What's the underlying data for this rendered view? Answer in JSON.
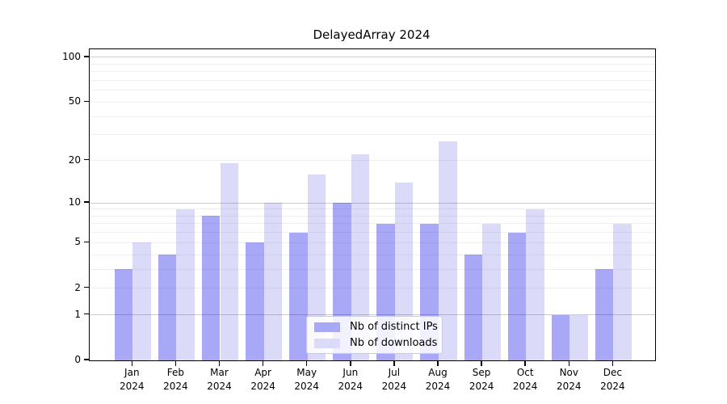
{
  "chart_data": {
    "type": "bar",
    "title": "DelayedArray 2024",
    "categories": [
      "Jan 2024",
      "Feb 2024",
      "Mar 2024",
      "Apr 2024",
      "May 2024",
      "Jun 2024",
      "Jul 2024",
      "Aug 2024",
      "Sep 2024",
      "Oct 2024",
      "Nov 2024",
      "Dec 2024"
    ],
    "series": [
      {
        "name": "Nb of distinct IPs",
        "color": "#a8a8f7",
        "values": [
          3,
          4,
          8,
          5,
          6,
          10,
          7,
          7,
          4,
          6,
          1,
          3
        ]
      },
      {
        "name": "Nb of downloads",
        "color": "#dbdbf9",
        "values": [
          5,
          9,
          19,
          10,
          16,
          22,
          14,
          27,
          7,
          9,
          1,
          7
        ]
      }
    ],
    "xlabel": "",
    "ylabel": "",
    "y_axis": {
      "scale": "log1p",
      "tick_labels": [
        "0",
        "1",
        "2",
        "5",
        "10",
        "20",
        "50",
        "100"
      ],
      "tick_values": [
        0,
        1,
        2,
        5,
        10,
        20,
        50,
        100
      ],
      "major_gridlines": [
        1,
        10,
        100
      ],
      "minor_gridlines": [
        2,
        3,
        4,
        5,
        6,
        7,
        8,
        9,
        20,
        30,
        40,
        50,
        60,
        70,
        80,
        90
      ],
      "ymax": 113
    },
    "legend": {
      "position": "bottom-center"
    },
    "grid": true
  },
  "colors": {
    "background": "#ffffff",
    "axis_frame": "#000000",
    "major_grid": "rgba(0,0,0,0.20)",
    "minor_grid": "rgba(0,0,0,0.06)",
    "text": "#000000"
  }
}
